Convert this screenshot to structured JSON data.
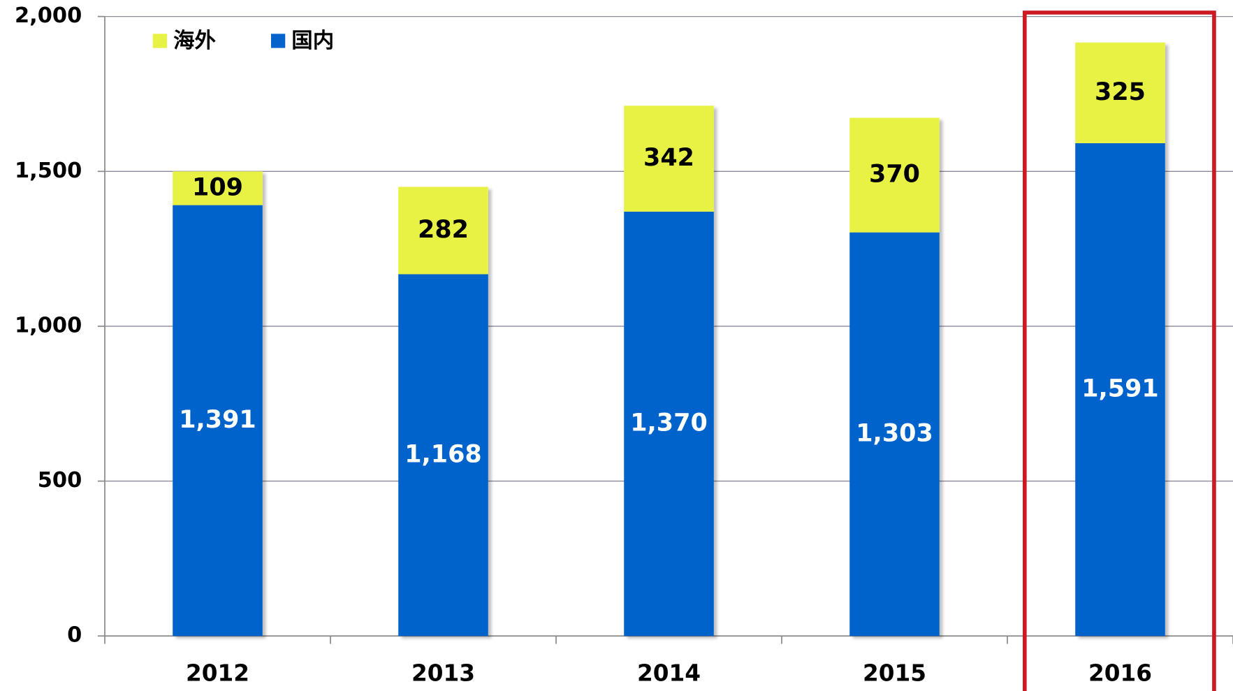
{
  "chart_data": {
    "type": "stacked_bar",
    "categories": [
      "2012",
      "2013",
      "2014",
      "2015",
      "2016"
    ],
    "series": [
      {
        "name": "国内",
        "color": "#0563cc",
        "values": [
          1391,
          1168,
          1370,
          1303,
          1591
        ],
        "value_labels": [
          "1,391",
          "1,168",
          "1,370",
          "1,303",
          "1,591"
        ]
      },
      {
        "name": "海外",
        "color": "#e8f244",
        "values": [
          109,
          282,
          342,
          370,
          325
        ]
      }
    ],
    "ylim": [
      0,
      2000
    ],
    "yticks": [
      0,
      500,
      {
        "value": 1000,
        "label": "1,000"
      },
      {
        "value": 1500,
        "label": "1,500"
      },
      {
        "value": 2000,
        "label": "2,000"
      }
    ],
    "grid": true,
    "legend": "top-left"
  }
}
